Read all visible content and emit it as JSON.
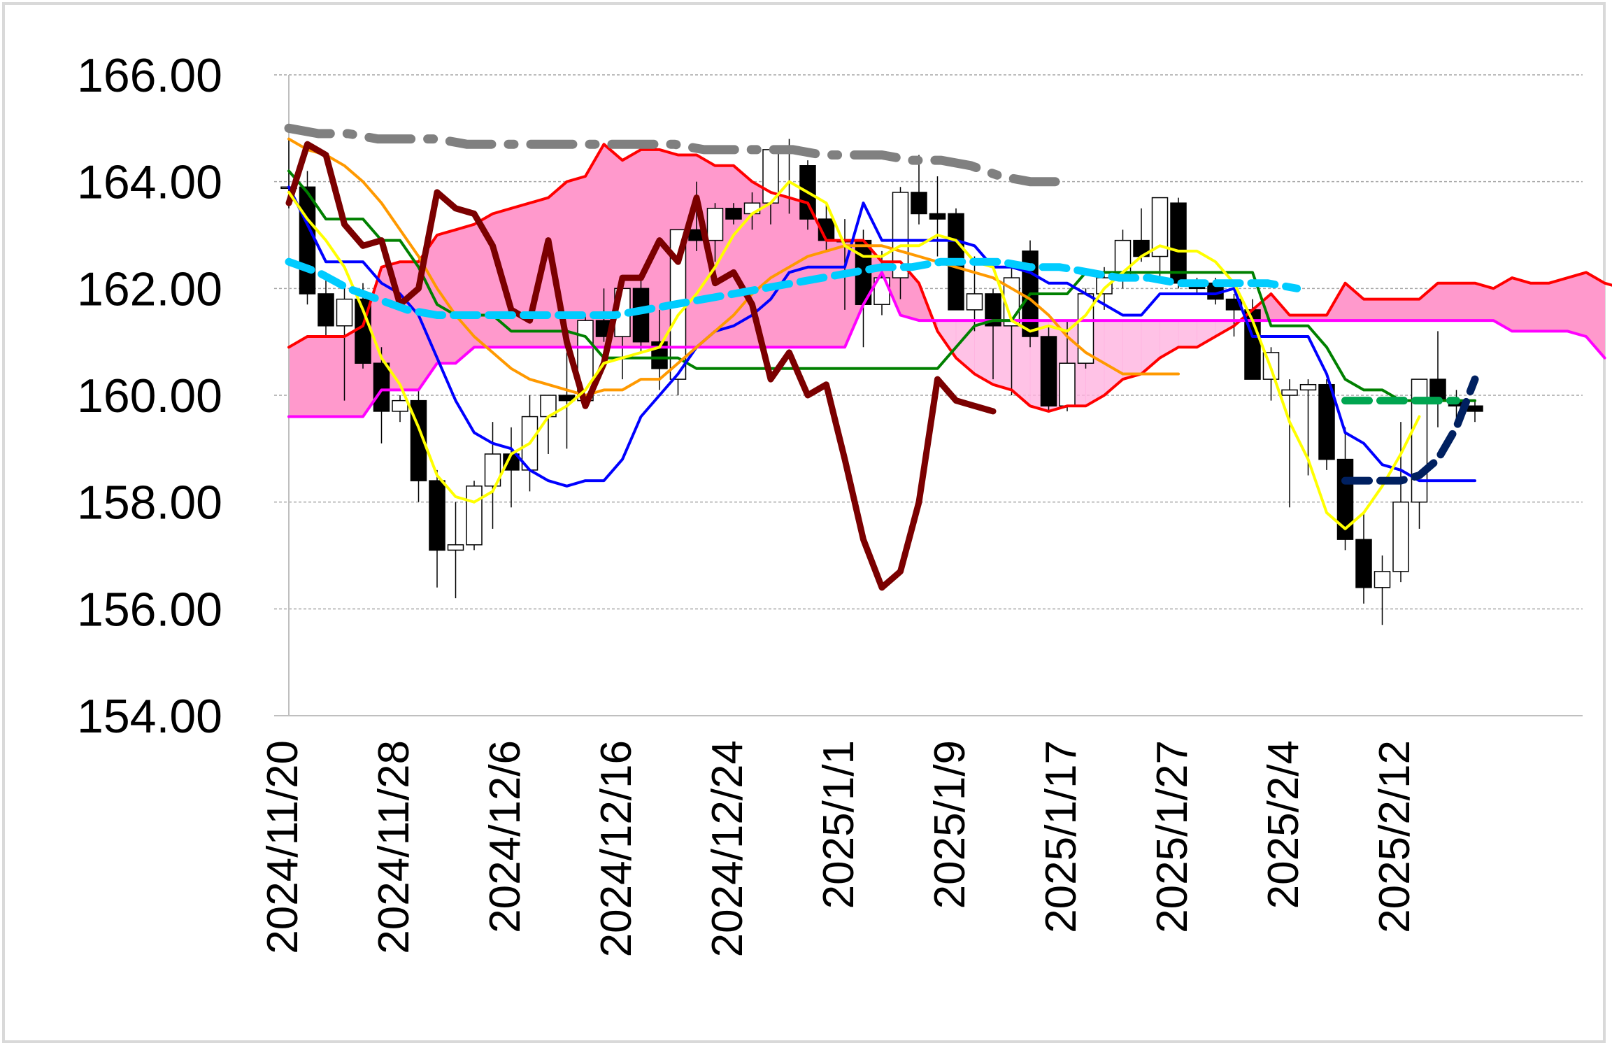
{
  "chart_data": {
    "type": "line",
    "title": "",
    "xlabel": "",
    "ylabel": "",
    "ylim": [
      154,
      166
    ],
    "yticks": [
      "154.00",
      "156.00",
      "158.00",
      "160.00",
      "162.00",
      "164.00",
      "166.00"
    ],
    "xticks": [
      {
        "i": 0,
        "label": "2024/11/20"
      },
      {
        "i": 6,
        "label": "2024/11/28"
      },
      {
        "i": 12,
        "label": "2024/12/6"
      },
      {
        "i": 18,
        "label": "2024/12/16"
      },
      {
        "i": 24,
        "label": "2024/12/24"
      },
      {
        "i": 30,
        "label": "2025/1/1"
      },
      {
        "i": 36,
        "label": "2025/1/9"
      },
      {
        "i": 42,
        "label": "2025/1/17"
      },
      {
        "i": 48,
        "label": "2025/1/27"
      },
      {
        "i": 54,
        "label": "2025/2/4"
      },
      {
        "i": 60,
        "label": "2025/2/12"
      }
    ],
    "grid": true,
    "legend": "none",
    "candles": [
      [
        163.9,
        164.8,
        163.5,
        163.9
      ],
      [
        163.9,
        164.2,
        161.7,
        161.9
      ],
      [
        161.9,
        162.3,
        161.1,
        161.3
      ],
      [
        161.3,
        162.1,
        159.9,
        161.8
      ],
      [
        161.8,
        162.1,
        160.5,
        160.6
      ],
      [
        160.6,
        160.9,
        159.1,
        159.7
      ],
      [
        159.7,
        160.0,
        159.5,
        159.9
      ],
      [
        159.9,
        160.1,
        158.0,
        158.4
      ],
      [
        158.4,
        158.6,
        156.4,
        157.1
      ],
      [
        157.1,
        158.0,
        156.2,
        157.2
      ],
      [
        157.2,
        158.4,
        157.1,
        158.3
      ],
      [
        158.3,
        159.5,
        157.5,
        158.9
      ],
      [
        158.9,
        159.4,
        157.9,
        158.6
      ],
      [
        158.6,
        160.0,
        158.2,
        159.6
      ],
      [
        159.6,
        160.0,
        158.9,
        160.0
      ],
      [
        160.0,
        160.8,
        159.0,
        159.9
      ],
      [
        159.9,
        161.5,
        159.8,
        161.4
      ],
      [
        161.4,
        162.0,
        161.0,
        161.1
      ],
      [
        161.1,
        162.1,
        160.3,
        162.0
      ],
      [
        162.0,
        162.2,
        160.8,
        161.0
      ],
      [
        161.0,
        161.6,
        160.1,
        160.5
      ],
      [
        160.3,
        163.1,
        160.0,
        163.1
      ],
      [
        163.1,
        164.0,
        162.7,
        162.9
      ],
      [
        162.9,
        163.6,
        162.5,
        163.5
      ],
      [
        163.5,
        163.6,
        163.2,
        163.3
      ],
      [
        163.4,
        163.8,
        163.1,
        163.6
      ],
      [
        163.6,
        164.6,
        163.2,
        164.6
      ],
      [
        164.6,
        164.8,
        163.4,
        164.6
      ],
      [
        164.3,
        164.4,
        163.1,
        163.3
      ],
      [
        163.3,
        163.6,
        162.7,
        162.9
      ],
      [
        162.9,
        163.3,
        161.6,
        162.9
      ],
      [
        162.9,
        163.1,
        160.9,
        161.7
      ],
      [
        161.7,
        162.7,
        161.5,
        162.2
      ],
      [
        162.2,
        163.9,
        161.8,
        163.8
      ],
      [
        163.8,
        164.5,
        163.2,
        163.4
      ],
      [
        163.4,
        164.1,
        162.6,
        163.3
      ],
      [
        163.4,
        163.5,
        161.6,
        161.6
      ],
      [
        161.6,
        162.6,
        161.2,
        161.9
      ],
      [
        161.9,
        162.0,
        160.3,
        161.3
      ],
      [
        161.3,
        162.4,
        160.0,
        162.2
      ],
      [
        162.7,
        162.9,
        160.9,
        161.1
      ],
      [
        161.1,
        161.3,
        159.7,
        159.8
      ],
      [
        159.8,
        161.4,
        159.7,
        160.6
      ],
      [
        160.6,
        162.0,
        160.5,
        161.9
      ],
      [
        161.9,
        162.4,
        161.6,
        162.2
      ],
      [
        162.2,
        163.1,
        162.0,
        162.9
      ],
      [
        162.9,
        163.5,
        162.5,
        162.6
      ],
      [
        162.6,
        163.7,
        162.2,
        163.7
      ],
      [
        163.6,
        163.7,
        162.0,
        162.1
      ],
      [
        162.1,
        162.2,
        161.9,
        162.0
      ],
      [
        162.1,
        162.2,
        161.7,
        161.8
      ],
      [
        161.8,
        161.9,
        161.1,
        161.6
      ],
      [
        161.6,
        161.8,
        160.3,
        160.3
      ],
      [
        160.3,
        160.9,
        159.9,
        160.8
      ],
      [
        160.0,
        160.3,
        157.9,
        160.1
      ],
      [
        160.1,
        160.3,
        158.5,
        160.2
      ],
      [
        160.2,
        160.3,
        158.6,
        158.8
      ],
      [
        158.8,
        159.4,
        157.1,
        157.3
      ],
      [
        157.3,
        157.8,
        156.1,
        156.4
      ],
      [
        156.4,
        157.0,
        155.7,
        156.7
      ],
      [
        156.7,
        159.5,
        156.5,
        158.0
      ],
      [
        158.0,
        160.2,
        157.5,
        160.3
      ],
      [
        160.3,
        161.2,
        159.4,
        159.9
      ],
      [
        159.9,
        160.1,
        159.5,
        159.8
      ],
      [
        159.8,
        159.9,
        159.5,
        159.7
      ]
    ],
    "series": [
      {
        "color": "#7b0000",
        "values": [
          163.6,
          164.7,
          164.5,
          163.2,
          162.8,
          162.9,
          161.7,
          162.0,
          163.8,
          163.5,
          163.4,
          162.8,
          161.6,
          161.4,
          162.9,
          161.0,
          159.8,
          160.6,
          162.2,
          162.2,
          162.9,
          162.5,
          163.7,
          162.1,
          162.3,
          161.7,
          160.3,
          160.8,
          160.0,
          160.2,
          158.8,
          157.3,
          156.4,
          156.7,
          158.0,
          160.3,
          159.9,
          159.8,
          159.7
        ]
      },
      {
        "color": "#0000ff",
        "values": [
          163.9,
          163.2,
          162.5,
          162.5,
          162.5,
          162.1,
          161.9,
          161.5,
          160.7,
          159.9,
          159.3,
          159.1,
          159.0,
          158.6,
          158.4,
          158.3,
          158.4,
          158.4,
          158.8,
          159.6,
          160.0,
          160.4,
          160.9,
          161.2,
          161.3,
          161.5,
          161.8,
          162.3,
          162.4,
          162.4,
          162.4,
          163.6,
          162.9,
          162.9,
          162.9,
          162.9,
          162.9,
          162.8,
          162.4,
          162.4,
          162.3,
          162.1,
          162.1,
          161.9,
          161.7,
          161.5,
          161.5,
          161.9,
          161.9,
          161.9,
          161.9,
          162.0,
          161.1,
          161.1,
          161.1,
          161.1,
          160.4,
          159.3,
          159.1,
          158.7,
          158.6,
          158.4,
          158.4,
          158.4,
          158.4
        ]
      },
      {
        "color": "#008000",
        "values": [
          164.2,
          163.8,
          163.3,
          163.3,
          163.3,
          162.9,
          162.9,
          162.4,
          161.7,
          161.5,
          161.5,
          161.5,
          161.2,
          161.2,
          161.2,
          161.2,
          161.1,
          160.7,
          160.7,
          160.7,
          160.7,
          160.7,
          160.5,
          160.5,
          160.5,
          160.5,
          160.5,
          160.5,
          160.5,
          160.5,
          160.5,
          160.5,
          160.5,
          160.5,
          160.5,
          160.5,
          160.9,
          161.3,
          161.4,
          161.4,
          161.9,
          161.9,
          161.9,
          162.3,
          162.3,
          162.3,
          162.3,
          162.3,
          162.3,
          162.3,
          162.3,
          162.3,
          162.3,
          161.3,
          161.3,
          161.3,
          160.9,
          160.3,
          160.1,
          160.1,
          159.9,
          159.9,
          159.9,
          159.9,
          159.9
        ]
      },
      {
        "color": "#ff00ff",
        "values": [
          159.6,
          159.6,
          159.6,
          159.6,
          159.6,
          160.1,
          160.1,
          160.1,
          160.6,
          160.6,
          160.9,
          160.9,
          160.9,
          160.9,
          160.9,
          160.9,
          160.9,
          160.9,
          160.9,
          160.9,
          160.9,
          160.9,
          160.9,
          160.9,
          160.9,
          160.9,
          160.9,
          160.9,
          160.9,
          160.9,
          160.9,
          161.7,
          162.3,
          161.5,
          161.4,
          161.4,
          161.4,
          161.4,
          161.4,
          161.4,
          161.4,
          161.4,
          161.4,
          161.4,
          161.4,
          161.4,
          161.4,
          161.4,
          161.4,
          161.4,
          161.4,
          161.4,
          161.4,
          161.4,
          161.4,
          161.4,
          161.4,
          161.4,
          161.4,
          161.4,
          161.4,
          161.4,
          161.4,
          161.4,
          161.4,
          161.4,
          161.2,
          161.2,
          161.2,
          161.2,
          161.1,
          160.7
        ]
      },
      {
        "color": "#ff0000",
        "values": [
          160.9,
          161.1,
          161.1,
          161.1,
          161.3,
          162.4,
          162.5,
          162.5,
          163.0,
          163.1,
          163.2,
          163.4,
          163.5,
          163.6,
          163.7,
          164.0,
          164.1,
          164.7,
          164.4,
          164.6,
          164.6,
          164.5,
          164.5,
          164.3,
          164.3,
          164.0,
          163.8,
          163.7,
          163.6,
          162.9,
          162.9,
          162.9,
          162.5,
          162.5,
          162.1,
          161.2,
          160.7,
          160.4,
          160.2,
          160.1,
          159.8,
          159.7,
          159.8,
          159.8,
          160.0,
          160.3,
          160.4,
          160.7,
          160.9,
          160.9,
          161.1,
          161.3,
          161.6,
          161.9,
          161.5,
          161.5,
          161.5,
          162.1,
          161.8,
          161.8,
          161.8,
          161.8,
          162.1,
          162.1,
          162.1,
          162.0,
          162.2,
          162.1,
          162.1,
          162.2,
          162.3,
          162.1,
          162.0
        ]
      },
      {
        "color": "#ffff00",
        "values": [
          163.8,
          163.3,
          162.9,
          162.4,
          161.6,
          160.7,
          160.2,
          159.4,
          158.5,
          158.1,
          158.0,
          158.2,
          158.9,
          159.1,
          159.6,
          159.8,
          160.1,
          160.6,
          160.7,
          160.8,
          160.9,
          161.5,
          161.9,
          162.4,
          163.0,
          163.4,
          163.6,
          164.0,
          163.8,
          163.6,
          162.8,
          162.6,
          162.6,
          162.8,
          162.8,
          163.0,
          162.9,
          162.5,
          162.4,
          161.4,
          161.2,
          161.3,
          161.2,
          161.5,
          162.0,
          162.3,
          162.6,
          162.8,
          162.7,
          162.7,
          162.5,
          162.1,
          161.4,
          160.5,
          159.5,
          158.8,
          157.8,
          157.5,
          157.8,
          158.3,
          158.9,
          159.6
        ]
      },
      {
        "color": "#ff9900",
        "values": [
          164.8,
          164.6,
          164.5,
          164.3,
          164.0,
          163.6,
          163.1,
          162.6,
          162.0,
          161.5,
          161.1,
          160.8,
          160.5,
          160.3,
          160.2,
          160.1,
          160.0,
          160.1,
          160.1,
          160.3,
          160.3,
          160.6,
          160.9,
          161.2,
          161.5,
          161.9,
          162.2,
          162.4,
          162.6,
          162.7,
          162.8,
          162.8,
          162.8,
          162.7,
          162.6,
          162.5,
          162.4,
          162.3,
          162.2,
          162.0,
          161.8,
          161.5,
          161.1,
          160.8,
          160.6,
          160.4,
          160.4,
          160.4,
          160.4
        ]
      },
      {
        "color": "#808080",
        "values": [
          165.0,
          164.9,
          164.9,
          164.8,
          164.8,
          164.8,
          164.7,
          164.7,
          164.7,
          164.7,
          164.7,
          164.7,
          164.7,
          164.7,
          164.6,
          164.6,
          164.6,
          164.6,
          164.5,
          164.5,
          164.5,
          164.4,
          164.4,
          164.3,
          164.1,
          164.0,
          164.0
        ]
      },
      {
        "color": "#00ccff",
        "values": [
          162.5,
          162.3,
          162.0,
          161.8,
          161.6,
          161.5,
          161.5,
          161.5,
          161.5,
          161.5,
          161.5,
          161.5,
          161.6,
          161.7,
          161.8,
          161.9,
          162.0,
          162.1,
          162.2,
          162.3,
          162.4,
          162.4,
          162.5,
          162.5,
          162.5,
          162.4,
          162.4,
          162.3,
          162.2,
          162.2,
          162.1,
          162.1,
          162.1,
          162.1,
          162.0
        ]
      },
      {
        "color": "#00a550",
        "values": [
          159.9,
          159.9,
          159.9,
          159.9,
          159.9,
          159.9,
          159.9
        ]
      },
      {
        "color": "#002060",
        "values": [
          158.4,
          158.4,
          158.4,
          158.4,
          158.5,
          158.8,
          159.4,
          160.3
        ]
      }
    ]
  }
}
